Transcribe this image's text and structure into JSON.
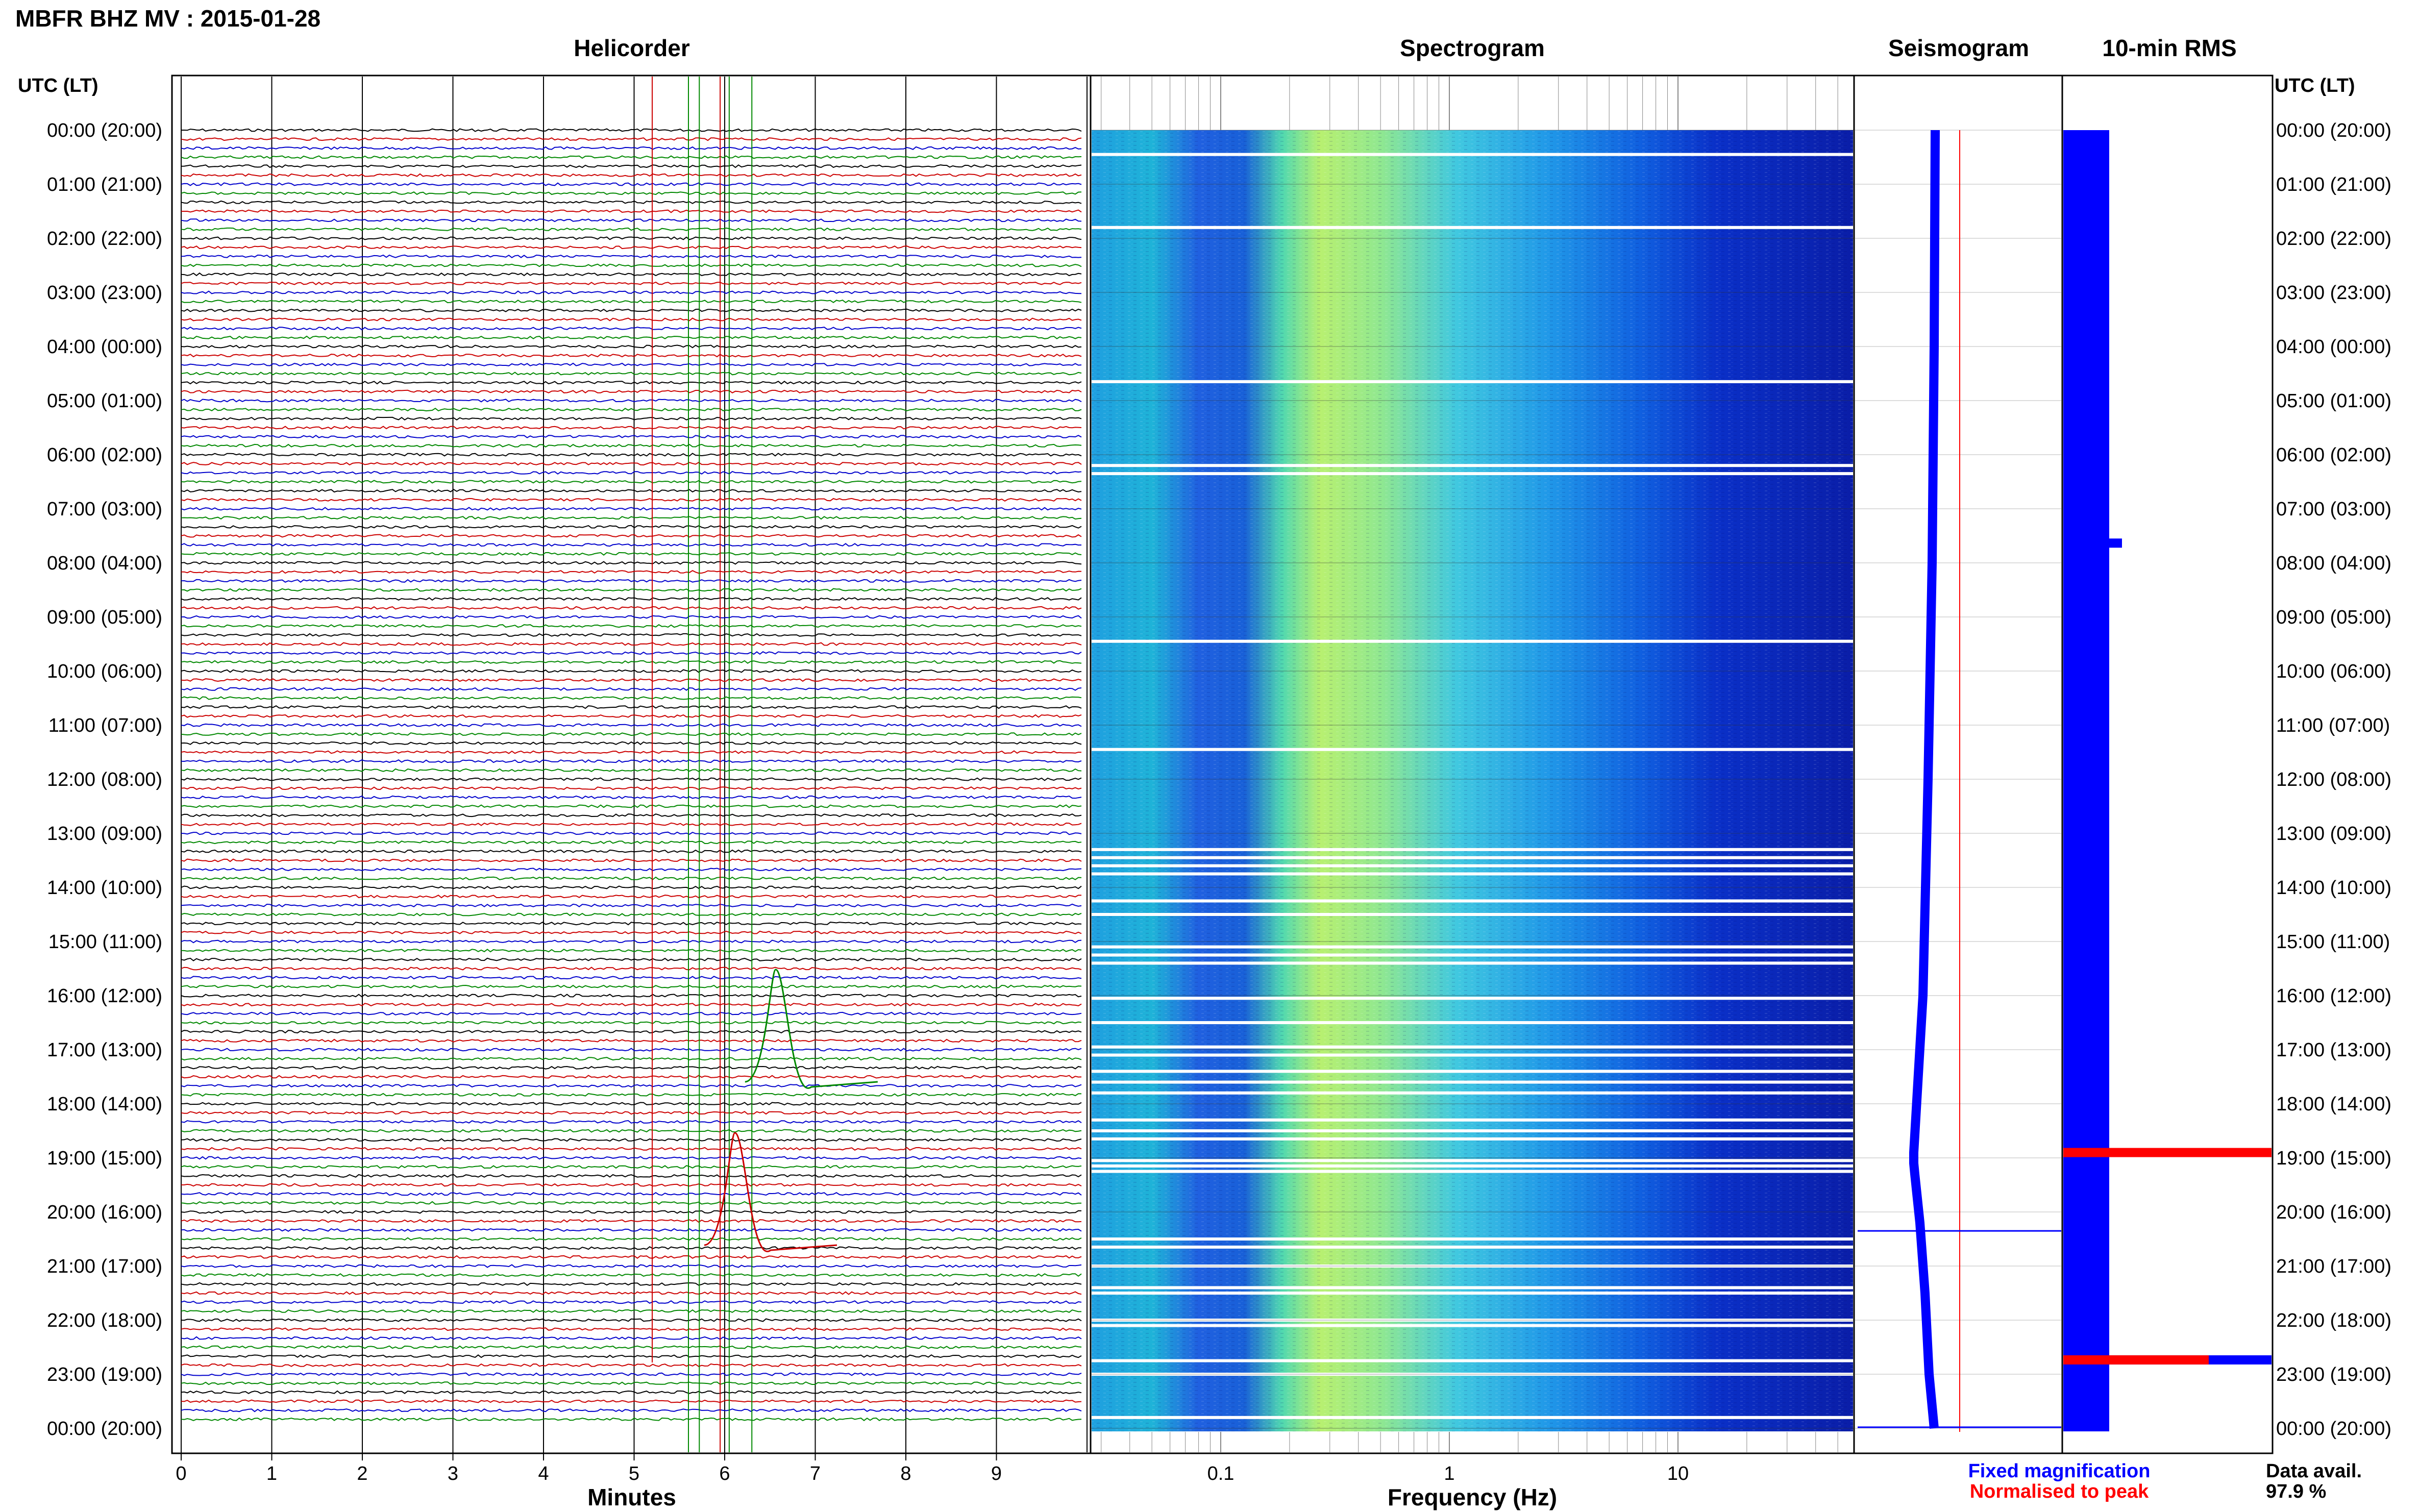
{
  "station_title": "MBFR BHZ MV : 2015-01-28",
  "panels": {
    "helicorder": "Helicorder",
    "spectrogram": "Spectrogram",
    "seismogram": "Seismogram",
    "rms": "10-min RMS"
  },
  "time_axis_label": "UTC (LT)",
  "time_labels": [
    "00:00 (20:00)",
    "01:00 (21:00)",
    "02:00 (22:00)",
    "03:00 (23:00)",
    "04:00 (00:00)",
    "05:00 (01:00)",
    "06:00 (02:00)",
    "07:00 (03:00)",
    "08:00 (04:00)",
    "09:00 (05:00)",
    "10:00 (06:00)",
    "11:00 (07:00)",
    "12:00 (08:00)",
    "13:00 (09:00)",
    "14:00 (10:00)",
    "15:00 (11:00)",
    "16:00 (12:00)",
    "17:00 (13:00)",
    "18:00 (14:00)",
    "19:00 (15:00)",
    "20:00 (16:00)",
    "21:00 (17:00)",
    "22:00 (18:00)",
    "23:00 (19:00)",
    "00:00 (20:00)"
  ],
  "minutes_axis": {
    "label": "Minutes",
    "ticks": [
      "0",
      "1",
      "2",
      "3",
      "4",
      "5",
      "6",
      "7",
      "8",
      "9"
    ]
  },
  "frequency_axis": {
    "label": "Frequency (Hz)",
    "ticks": [
      "0.1",
      "1",
      "10"
    ]
  },
  "legend": {
    "fixed": "Fixed magnification",
    "normalised": "Normalised to peak"
  },
  "data_availability": {
    "label": "Data avail.",
    "value": "97.9 %"
  },
  "colors": {
    "trace_cycle": [
      "#000000",
      "#cc0000",
      "#0000cc",
      "#008800"
    ],
    "fixed": "#0000ff",
    "normalised": "#ff0000",
    "spectrogram_low": "#0a1ea8",
    "spectrogram_high": "#c8f060"
  },
  "chart_data": {
    "type": "heatmap",
    "trace_interval_minutes": 10,
    "helicorder_xlim_minutes": [
      0,
      10
    ],
    "frequency_xlim_hz": [
      0.03,
      50
    ],
    "frequency_scale": "log",
    "time_range_utc": [
      "00:00",
      "24:00"
    ],
    "rms_spikes": [
      {
        "time_utc": "19:10",
        "level": "peak"
      },
      {
        "time_utc": "23:00",
        "level": "high"
      }
    ]
  }
}
